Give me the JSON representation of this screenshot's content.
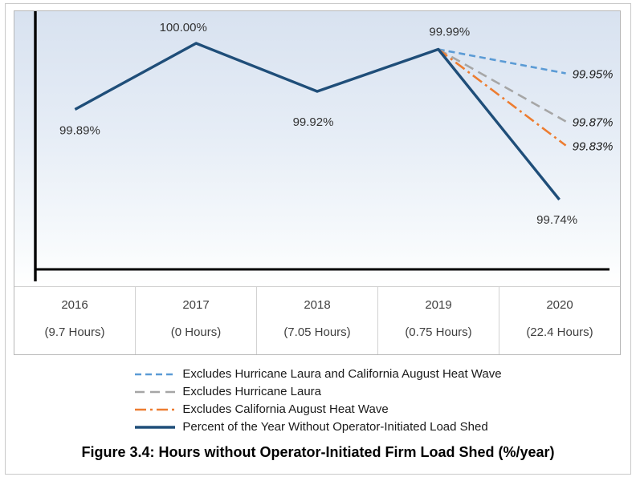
{
  "chart_data": {
    "type": "line",
    "title": "Figure 3.4: Hours without Operator-Initiated Firm Load Shed (%/year)",
    "categories": [
      "2016",
      "2017",
      "2018",
      "2019",
      "2020"
    ],
    "category_hours": [
      "(9.7 Hours)",
      "(0 Hours)",
      "(7.05 Hours)",
      "(0.75 Hours)",
      "(22.4 Hours)"
    ],
    "ylabel": "",
    "xlabel": "",
    "ylim": [
      99.7,
      100.02
    ],
    "grid": false,
    "legend_position": "bottom",
    "series": [
      {
        "name": "Percent of the Year Without Operator-Initiated Load Shed",
        "style": "solid",
        "color": "#1f4e79",
        "x": [
          2016,
          2017,
          2018,
          2019,
          2020
        ],
        "values": [
          99.89,
          100.0,
          99.92,
          99.99,
          99.74
        ],
        "point_labels": [
          "99.89%",
          "100.00%",
          "99.92%",
          "99.99%",
          "99.74%"
        ]
      },
      {
        "name": "Excludes Hurricane Laura and California August Heat Wave",
        "style": "dashed",
        "color": "#5b9bd5",
        "x": [
          2019,
          2020
        ],
        "values": [
          99.99,
          99.95
        ],
        "end_label": "99.95%"
      },
      {
        "name": "Excludes Hurricane Laura",
        "style": "long-dash",
        "color": "#a6a6a6",
        "x": [
          2019,
          2020
        ],
        "values": [
          99.99,
          99.87
        ],
        "end_label": "99.87%"
      },
      {
        "name": "Excludes California August Heat Wave",
        "style": "dash-dot",
        "color": "#ed7d31",
        "x": [
          2019,
          2020
        ],
        "values": [
          99.99,
          99.83
        ],
        "end_label": "99.83%"
      }
    ]
  },
  "legend": {
    "items": [
      {
        "label": "Excludes Hurricane Laura and California August Heat Wave",
        "color": "#5b9bd5",
        "style": "dashed"
      },
      {
        "label": "Excludes Hurricane Laura",
        "color": "#a6a6a6",
        "style": "long-dash"
      },
      {
        "label": "Excludes California August Heat Wave",
        "color": "#ed7d31",
        "style": "dash-dot"
      },
      {
        "label": "Percent of the Year Without Operator-Initiated Load Shed",
        "color": "#1f4e79",
        "style": "solid"
      }
    ]
  },
  "caption": "Figure 3.4: Hours without Operator-Initiated Firm Load Shed (%/year)"
}
